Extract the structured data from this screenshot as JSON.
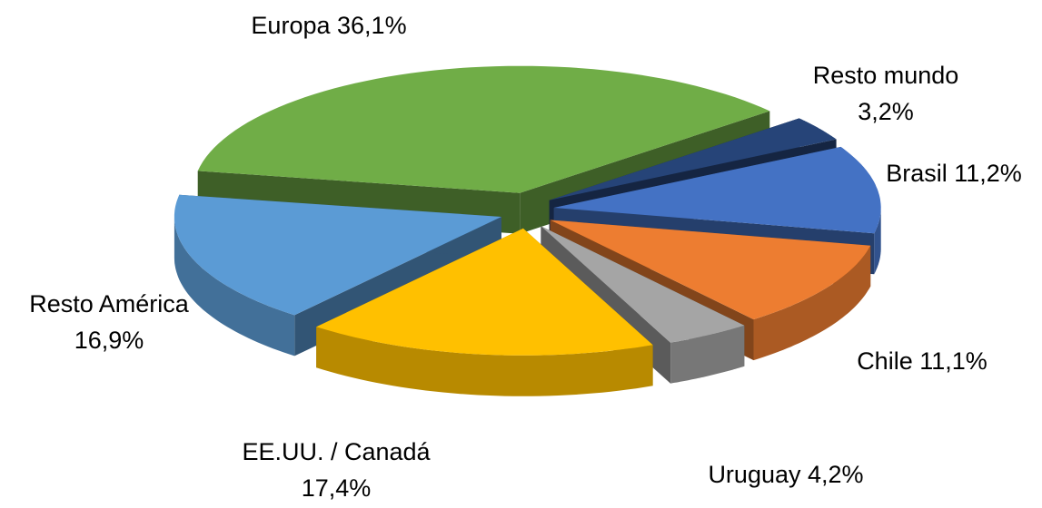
{
  "chart_data": {
    "type": "pie3d",
    "categories": [
      "Europa",
      "Resto mundo",
      "Brasil",
      "Chile",
      "Uruguay",
      "EE.UU. / Canadá",
      "Resto América"
    ],
    "values": [
      36.1,
      3.2,
      11.2,
      11.1,
      4.2,
      17.4,
      16.9
    ],
    "value_labels": [
      "36,1%",
      "3,2%",
      "11,2%",
      "11,1%",
      "4,2%",
      "17,4%",
      "16,9%"
    ],
    "colors": [
      "#70ad47",
      "#264478",
      "#4472c4",
      "#ed7d31",
      "#a5a5a5",
      "#ffc000",
      "#5b9bd5"
    ]
  }
}
